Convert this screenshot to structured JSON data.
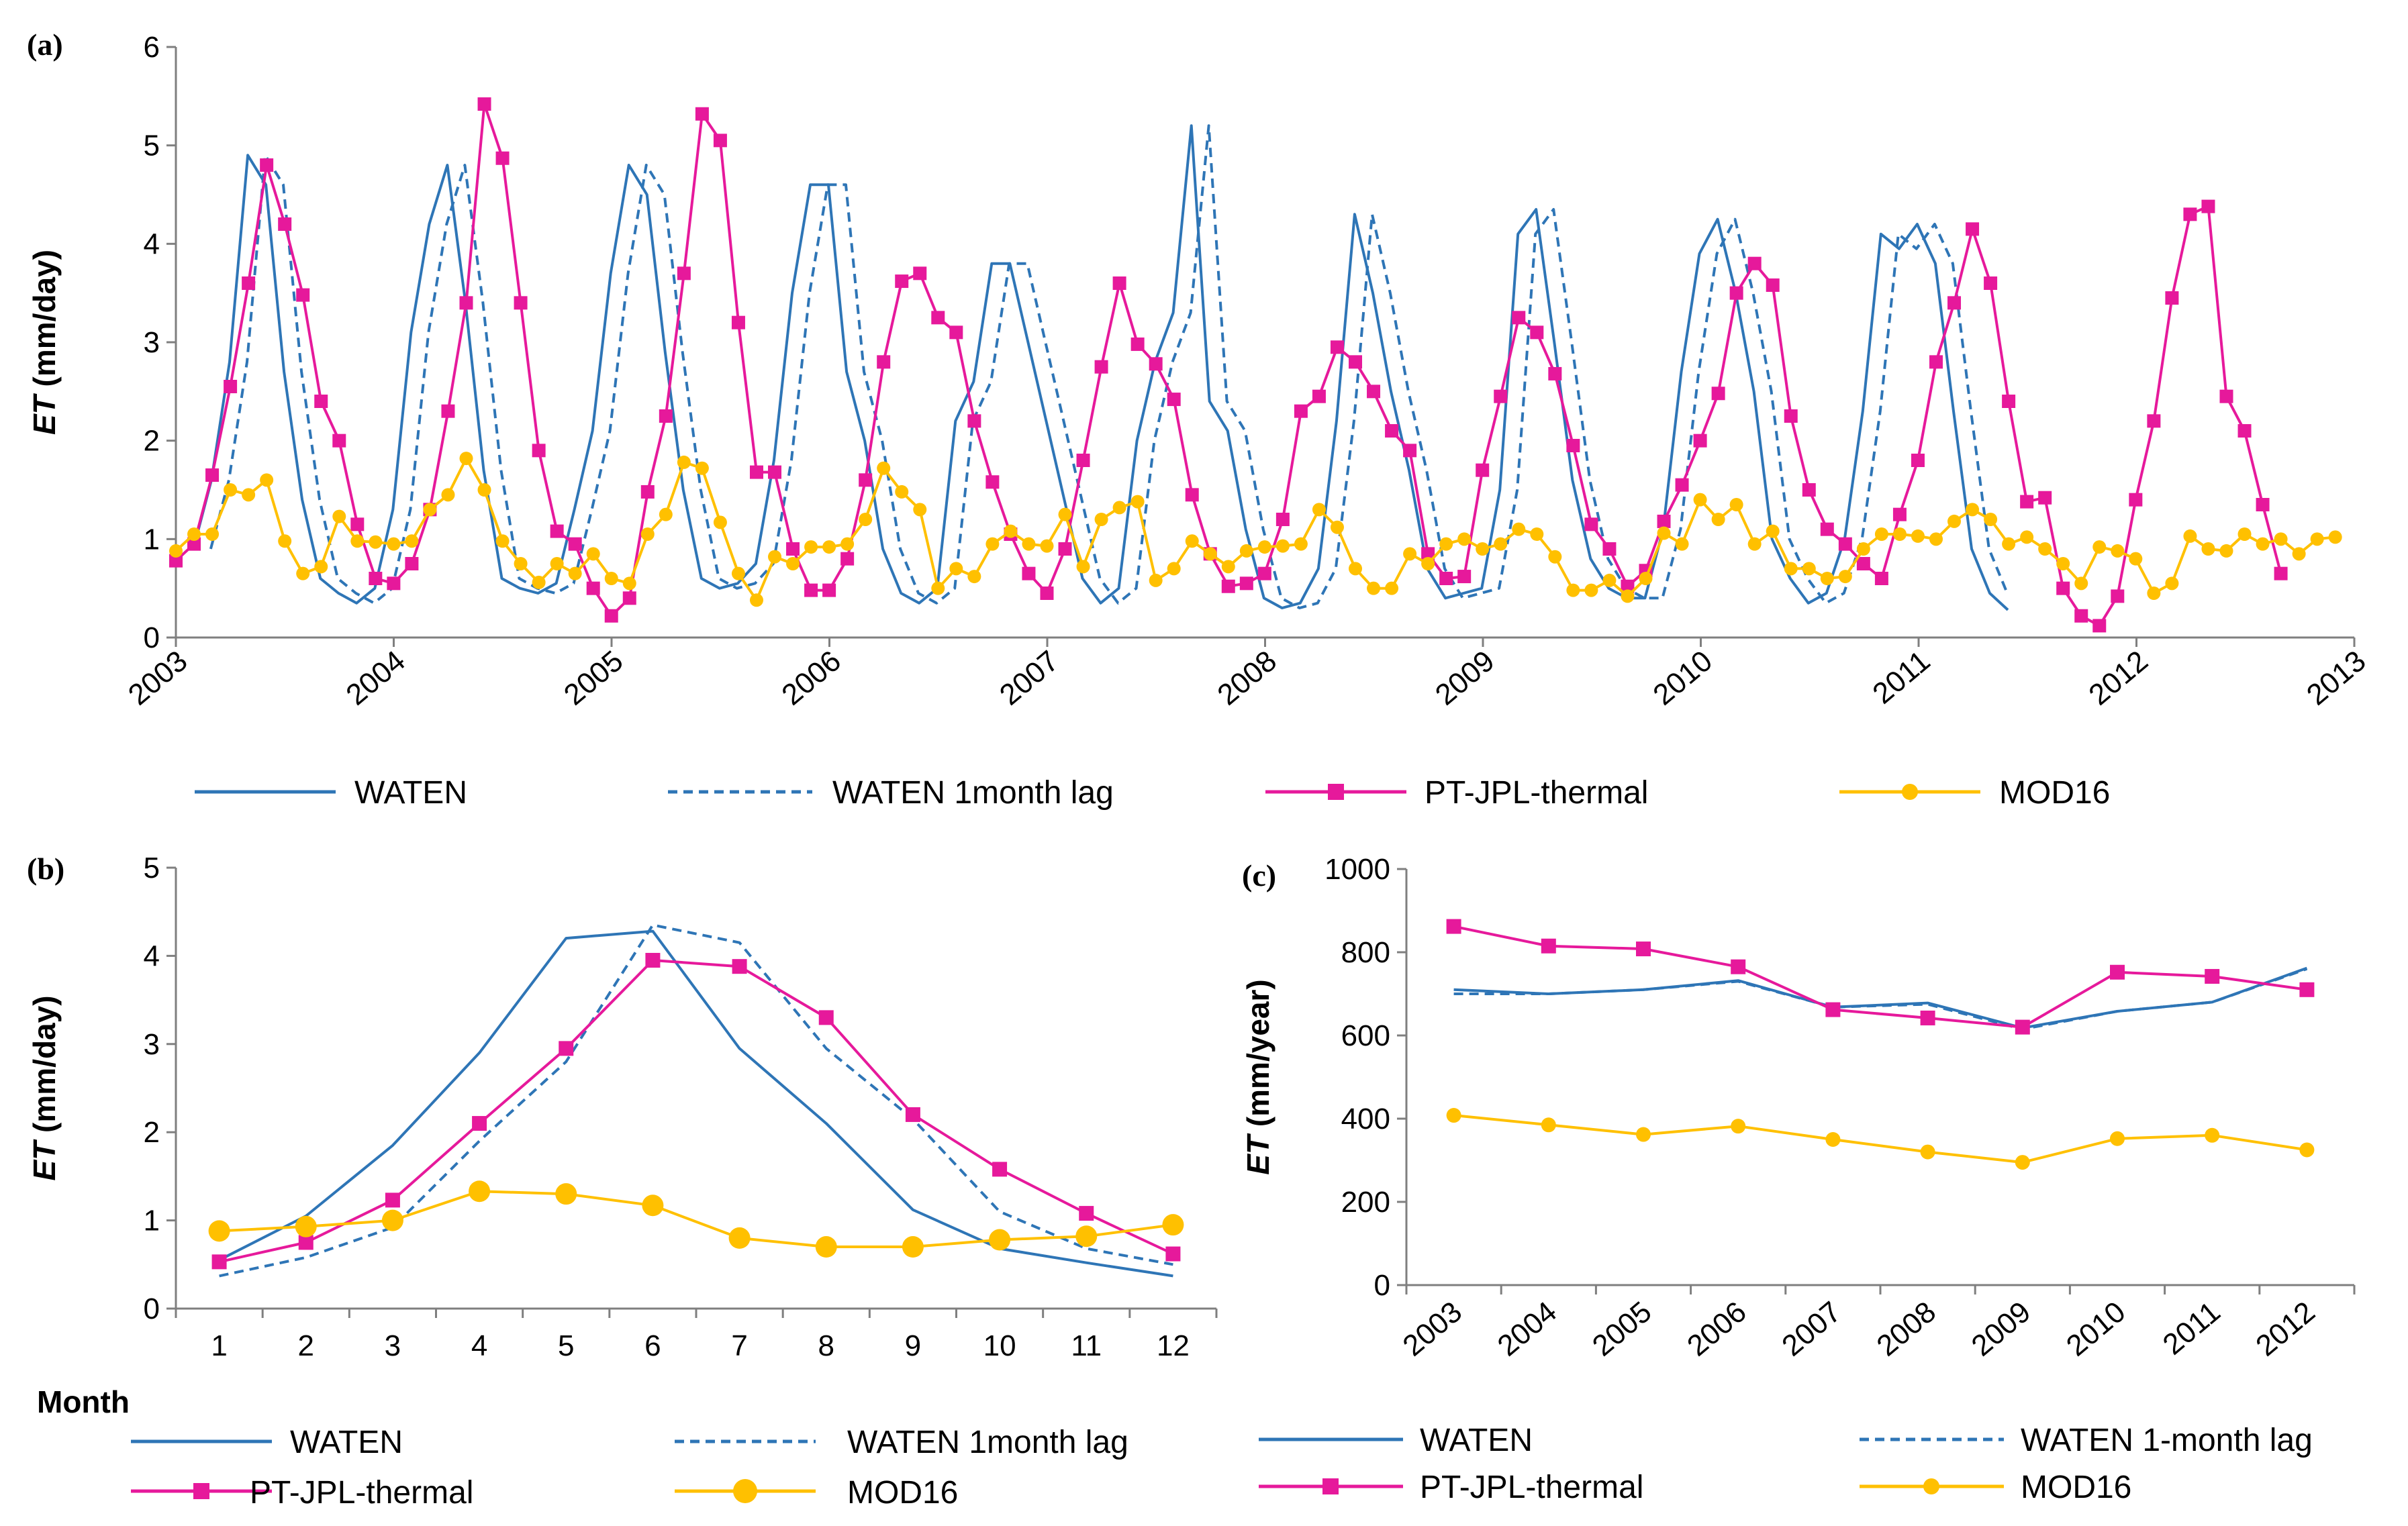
{
  "colors": {
    "waten": "#2E75B6",
    "ptjpl": "#E6199B",
    "mod16": "#FFC000"
  },
  "panels": {
    "a": "(a)",
    "b": "(b)",
    "c": "(c)"
  },
  "legend_ab": {
    "waten": "WATEN",
    "waten_lag": "WATEN 1month lag",
    "ptjpl": "PT-JPL-thermal",
    "mod16": "MOD16"
  },
  "legend_c": {
    "waten": "WATEN",
    "waten_lag": "WATEN 1-month lag",
    "ptjpl": "PT-JPL-thermal",
    "mod16": "MOD16"
  },
  "chart_data": [
    {
      "id": "a",
      "type": "line",
      "ylabel_italic": "ET",
      "ylabel_rest": " (mm/day)",
      "ylim": [
        0,
        6
      ],
      "yticks": [
        "0",
        "1",
        "2",
        "3",
        "4",
        "5",
        "6"
      ],
      "xlim": [
        2003,
        2013
      ],
      "xticks": [
        "2003",
        "2004",
        "2005",
        "2006",
        "2007",
        "2008",
        "2009",
        "2010",
        "2011",
        "2012",
        "2013"
      ],
      "series": [
        {
          "name": "WATEN",
          "x_start": 2003.08,
          "step": 0.0833,
          "values": [
            0.9,
            1.6,
            2.8,
            4.9,
            4.6,
            2.7,
            1.4,
            0.6,
            0.45,
            0.35,
            0.5,
            1.3,
            3.1,
            4.2,
            4.8,
            3.4,
            1.7,
            0.6,
            0.5,
            0.45,
            0.55,
            1.3,
            2.1,
            3.7,
            4.8,
            4.5,
            2.9,
            1.5,
            0.6,
            0.5,
            0.55,
            0.75,
            1.8,
            3.5,
            4.6,
            4.6,
            2.7,
            2.0,
            0.9,
            0.45,
            0.35,
            0.5,
            2.2,
            2.6,
            3.8,
            3.8,
            3.0,
            2.2,
            1.4,
            0.6,
            0.35,
            0.5,
            2.0,
            2.8,
            3.3,
            5.2,
            2.4,
            2.1,
            1.1,
            0.4,
            0.3,
            0.35,
            0.7,
            2.2,
            4.3,
            3.5,
            2.5,
            1.7,
            0.7,
            0.4,
            0.45,
            0.5,
            1.5,
            4.1,
            4.35,
            3.0,
            1.6,
            0.8,
            0.5,
            0.4,
            0.4,
            1.1,
            2.7,
            3.9,
            4.25,
            3.5,
            2.5,
            1.0,
            0.6,
            0.35,
            0.45,
            1.0,
            2.3,
            4.1,
            3.95,
            4.2,
            3.8,
            2.3,
            0.9,
            0.45,
            0.28
          ]
        },
        {
          "name": "WATEN 1month lag",
          "x_start": 2003.16,
          "step": 0.0833,
          "values": [
            0.9,
            1.6,
            2.8,
            4.9,
            4.6,
            2.7,
            1.4,
            0.6,
            0.45,
            0.35,
            0.5,
            1.3,
            3.1,
            4.2,
            4.8,
            3.4,
            1.7,
            0.6,
            0.5,
            0.45,
            0.55,
            1.3,
            2.1,
            3.7,
            4.8,
            4.5,
            2.9,
            1.5,
            0.6,
            0.5,
            0.55,
            0.75,
            1.8,
            3.5,
            4.6,
            4.6,
            2.7,
            2.0,
            0.9,
            0.45,
            0.35,
            0.5,
            2.2,
            2.6,
            3.8,
            3.8,
            3.0,
            2.2,
            1.4,
            0.6,
            0.35,
            0.5,
            2.0,
            2.8,
            3.3,
            5.2,
            2.4,
            2.1,
            1.1,
            0.4,
            0.3,
            0.35,
            0.7,
            2.2,
            4.3,
            3.5,
            2.5,
            1.7,
            0.7,
            0.4,
            0.45,
            0.5,
            1.5,
            4.1,
            4.35,
            3.0,
            1.6,
            0.8,
            0.5,
            0.4,
            0.4,
            1.1,
            2.7,
            3.9,
            4.25,
            3.5,
            2.5,
            1.0,
            0.6,
            0.35,
            0.45,
            1.0,
            2.3,
            4.1,
            3.95,
            4.2,
            3.8,
            2.3,
            0.9,
            0.45
          ]
        },
        {
          "name": "PT-JPL-thermal",
          "x_start": 2003.0,
          "step": 0.0833,
          "values": [
            0.78,
            0.95,
            1.65,
            2.55,
            3.6,
            4.8,
            4.2,
            3.48,
            2.4,
            2.0,
            1.15,
            0.6,
            0.55,
            0.75,
            1.3,
            2.3,
            3.4,
            5.42,
            4.87,
            3.4,
            1.9,
            1.08,
            0.95,
            0.5,
            0.22,
            0.4,
            1.48,
            2.25,
            3.7,
            5.32,
            5.05,
            3.2,
            1.68,
            1.68,
            0.9,
            0.48,
            0.48,
            0.8,
            1.6,
            2.8,
            3.62,
            3.7,
            3.25,
            3.1,
            2.2,
            1.58,
            1.05,
            0.65,
            0.45,
            0.9,
            1.8,
            2.75,
            3.6,
            2.98,
            2.78,
            2.42,
            1.45,
            0.85,
            0.52,
            0.55,
            0.65,
            1.2,
            2.3,
            2.45,
            2.95,
            2.8,
            2.5,
            2.1,
            1.9,
            0.85,
            0.6,
            0.62,
            1.7,
            2.45,
            3.25,
            3.1,
            2.68,
            1.95,
            1.15,
            0.9,
            0.52,
            0.68,
            1.18,
            1.55,
            2.0,
            2.48,
            3.5,
            3.8,
            3.58,
            2.25,
            1.5,
            1.1,
            0.95,
            0.75,
            0.6,
            1.25,
            1.8,
            2.8,
            3.4,
            4.15,
            3.6,
            2.4,
            1.38,
            1.42,
            0.5,
            0.22,
            0.12,
            0.42,
            1.4,
            2.2,
            3.45,
            4.3,
            4.38,
            2.45,
            2.1,
            1.35,
            0.65
          ]
        },
        {
          "name": "MOD16",
          "x_start": 2003.0,
          "step": 0.0833,
          "values": [
            0.88,
            1.05,
            1.05,
            1.5,
            1.45,
            1.6,
            0.98,
            0.65,
            0.72,
            1.23,
            0.98,
            0.97,
            0.95,
            0.98,
            1.3,
            1.45,
            1.82,
            1.5,
            0.98,
            0.75,
            0.56,
            0.75,
            0.65,
            0.85,
            0.6,
            0.55,
            1.05,
            1.25,
            1.78,
            1.72,
            1.17,
            0.65,
            0.38,
            0.82,
            0.75,
            0.92,
            0.92,
            0.95,
            1.2,
            1.72,
            1.48,
            1.3,
            0.5,
            0.7,
            0.62,
            0.95,
            1.08,
            0.95,
            0.93,
            1.25,
            0.72,
            1.2,
            1.32,
            1.38,
            0.58,
            0.7,
            0.98,
            0.85,
            0.72,
            0.88,
            0.92,
            0.93,
            0.95,
            1.3,
            1.12,
            0.7,
            0.5,
            0.5,
            0.85,
            0.75,
            0.95,
            1.0,
            0.9,
            0.95,
            1.1,
            1.05,
            0.82,
            0.48,
            0.48,
            0.58,
            0.42,
            0.6,
            1.06,
            0.95,
            1.4,
            1.2,
            1.35,
            0.95,
            1.08,
            0.7,
            0.7,
            0.6,
            0.62,
            0.9,
            1.05,
            1.05,
            1.03,
            1.0,
            1.18,
            1.3,
            1.2,
            0.95,
            1.02,
            0.9,
            0.75,
            0.55,
            0.92,
            0.88,
            0.8,
            0.45,
            0.55,
            1.03,
            0.9,
            0.88,
            1.05,
            0.95,
            1.0,
            0.85,
            1.0,
            1.02
          ]
        }
      ]
    },
    {
      "id": "b",
      "type": "line",
      "ylabel_italic": "ET",
      "ylabel_rest": " (mm/day)",
      "xlabel": "Month",
      "ylim": [
        0,
        5
      ],
      "yticks": [
        "0",
        "1",
        "2",
        "3",
        "4",
        "5"
      ],
      "categories": [
        "1",
        "2",
        "3",
        "4",
        "5",
        "6",
        "7",
        "8",
        "9",
        "10",
        "11",
        "12"
      ],
      "series": [
        {
          "name": "WATEN",
          "values": [
            0.55,
            1.05,
            1.85,
            2.9,
            4.2,
            4.28,
            2.95,
            2.1,
            1.12,
            0.68,
            0.52,
            0.37
          ]
        },
        {
          "name": "WATEN 1month lag",
          "values": [
            0.37,
            0.58,
            0.92,
            1.9,
            2.8,
            4.35,
            4.15,
            2.95,
            2.15,
            1.1,
            0.68,
            0.5
          ]
        },
        {
          "name": "PT-JPL-thermal",
          "values": [
            0.53,
            0.75,
            1.23,
            2.1,
            2.95,
            3.95,
            3.88,
            3.3,
            2.2,
            1.58,
            1.08,
            0.62
          ]
        },
        {
          "name": "MOD16",
          "values": [
            0.88,
            0.93,
            1.0,
            1.33,
            1.3,
            1.17,
            0.8,
            0.7,
            0.7,
            0.78,
            0.82,
            0.95
          ]
        }
      ]
    },
    {
      "id": "c",
      "type": "line",
      "ylabel_italic": "ET",
      "ylabel_rest": " (mm/year)",
      "ylim": [
        0,
        1000
      ],
      "yticks": [
        "0",
        "200",
        "400",
        "600",
        "800",
        "1000"
      ],
      "categories": [
        "2003",
        "2004",
        "2005",
        "2006",
        "2007",
        "2008",
        "2009",
        "2010",
        "2011",
        "2012"
      ],
      "series": [
        {
          "name": "WATEN",
          "values": [
            710,
            700,
            710,
            732,
            668,
            678,
            618,
            658,
            680,
            762
          ]
        },
        {
          "name": "WATEN 1-month lag",
          "values": [
            700,
            700,
            710,
            730,
            668,
            675,
            615,
            658,
            680,
            760
          ]
        },
        {
          "name": "PT-JPL-thermal",
          "values": [
            862,
            815,
            808,
            765,
            662,
            642,
            620,
            752,
            742,
            710
          ]
        },
        {
          "name": "MOD16",
          "values": [
            408,
            385,
            362,
            382,
            350,
            320,
            295,
            352,
            360,
            325
          ]
        }
      ]
    }
  ]
}
